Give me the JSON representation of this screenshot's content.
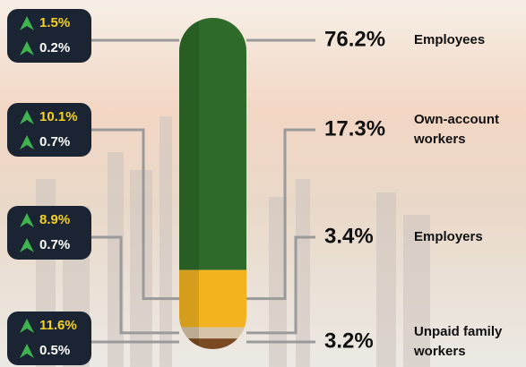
{
  "chart_data": {
    "type": "stacked-bar",
    "segments": [
      {
        "name": "Employees",
        "color": "#2e6b2a",
        "values": [
          76.2
        ],
        "value_labels": [
          "76.2%"
        ],
        "changes": [
          1.5,
          0.2
        ],
        "change_labels": [
          "1.5%",
          "0.2%"
        ]
      },
      {
        "name": "Own-account workers",
        "color": "#f2b31f",
        "values": [
          17.3
        ],
        "value_labels": [
          "17.3%"
        ],
        "changes": [
          10.1,
          0.7
        ],
        "change_labels": [
          "10.1%",
          "0.7%"
        ]
      },
      {
        "name": "Employers",
        "color": "#d7c4a8",
        "values": [
          3.4
        ],
        "value_labels": [
          "3.4%"
        ],
        "changes": [
          8.9,
          0.7
        ],
        "change_labels": [
          "8.9%",
          "0.7%"
        ]
      },
      {
        "name": "Unpaid family workers",
        "color": "#7a4a22",
        "values": [
          3.2
        ],
        "value_labels": [
          "3.2%"
        ],
        "changes": [
          11.6,
          0.5
        ],
        "change_labels": [
          "11.6%",
          "0.5%"
        ]
      }
    ]
  }
}
